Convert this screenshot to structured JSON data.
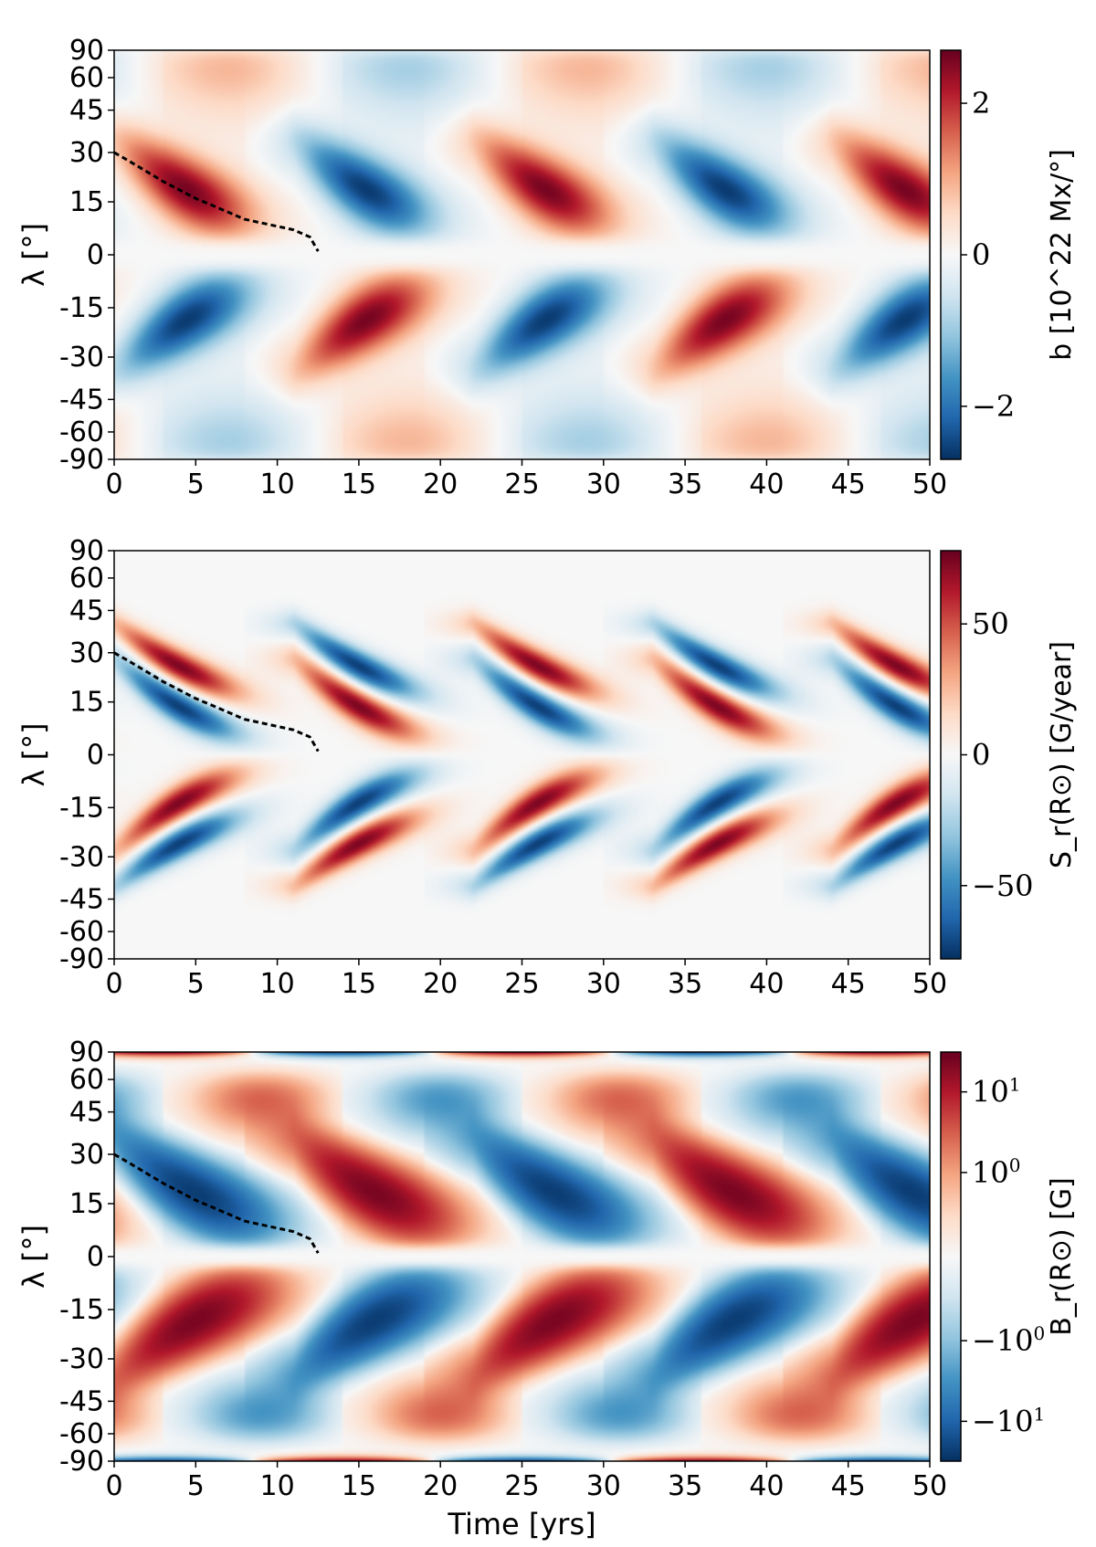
{
  "chart_data": [
    {
      "type": "heatmap",
      "panel": "top",
      "xlabel": "",
      "ylabel": "λ [°]",
      "xlim": [
        0,
        50
      ],
      "x_ticks": [
        "0",
        "5",
        "10",
        "15",
        "20",
        "25",
        "30",
        "35",
        "40",
        "45",
        "50"
      ],
      "y_ticks": [
        "90",
        "60",
        "45",
        "30",
        "15",
        "0",
        "-15",
        "-30",
        "-45",
        "-60",
        "-90"
      ],
      "y_scale": "sine of latitude",
      "colormap": "RdBu_r",
      "colorbar": {
        "label": "b [10^22 Mx/°]",
        "ticks": [
          "2",
          "0",
          "−2"
        ],
        "range": [
          -2.7,
          2.7
        ]
      },
      "pattern": {
        "cycle_period_yrs": 22,
        "band_start_latitude_deg": 30,
        "sign_at_t0_north": 1,
        "peak_value": 2.6
      },
      "overlay_curve": {
        "style": "black dashed",
        "points": [
          [
            0,
            30
          ],
          [
            1,
            27
          ],
          [
            2,
            24
          ],
          [
            3,
            21
          ],
          [
            4,
            18.5
          ],
          [
            5,
            16
          ],
          [
            6,
            14
          ],
          [
            7,
            12
          ],
          [
            8,
            10
          ],
          [
            9,
            9
          ],
          [
            10,
            8
          ],
          [
            11,
            7
          ],
          [
            12,
            5
          ],
          [
            12.5,
            1
          ]
        ]
      }
    },
    {
      "type": "heatmap",
      "panel": "middle",
      "xlabel": "",
      "ylabel": "λ [°]",
      "xlim": [
        0,
        50
      ],
      "x_ticks": [
        "0",
        "5",
        "10",
        "15",
        "20",
        "25",
        "30",
        "35",
        "40",
        "45",
        "50"
      ],
      "y_ticks": [
        "90",
        "60",
        "45",
        "30",
        "15",
        "0",
        "-15",
        "-30",
        "-45",
        "-60",
        "-90"
      ],
      "y_scale": "sine of latitude",
      "colormap": "RdBu_r",
      "colorbar": {
        "label": "S_r(R⊙) [G/year]",
        "ticks": [
          "50",
          "0",
          "−50"
        ],
        "range": [
          -78,
          78
        ]
      },
      "pattern": {
        "cycle_period_yrs": 22,
        "band_start_latitude_deg": 30,
        "sign_at_t0_north": 1,
        "peak_value": 75
      },
      "overlay_curve": {
        "style": "black dashed",
        "points": [
          [
            0,
            30
          ],
          [
            1,
            27
          ],
          [
            2,
            24
          ],
          [
            3,
            21
          ],
          [
            4,
            18.5
          ],
          [
            5,
            16
          ],
          [
            6,
            14
          ],
          [
            7,
            12
          ],
          [
            8,
            10
          ],
          [
            9,
            9
          ],
          [
            10,
            8
          ],
          [
            11,
            7
          ],
          [
            12,
            5
          ],
          [
            12.5,
            1
          ]
        ]
      }
    },
    {
      "type": "heatmap",
      "panel": "bottom",
      "xlabel": "Time [yrs]",
      "ylabel": "λ [°]",
      "xlim": [
        0,
        50
      ],
      "x_ticks": [
        "0",
        "5",
        "10",
        "15",
        "20",
        "25",
        "30",
        "35",
        "40",
        "45",
        "50"
      ],
      "y_ticks": [
        "90",
        "60",
        "45",
        "30",
        "15",
        "0",
        "-15",
        "-30",
        "-45",
        "-60",
        "-90"
      ],
      "y_scale": "sine of latitude",
      "colormap": "RdBu_r",
      "colorbar": {
        "label": "B_r(R⊙) [G]",
        "ticks": [
          "10^1",
          "10^0",
          "−10^0",
          "−10^1"
        ],
        "scale": "symlog",
        "range": [
          -30,
          30
        ]
      },
      "pattern": {
        "cycle_period_yrs": 22,
        "band_start_latitude_deg": 30,
        "sign_at_t0_north": -1,
        "peak_value": 25,
        "polar_peak_value": 30
      },
      "overlay_curve": {
        "style": "black dashed",
        "points": [
          [
            0,
            30
          ],
          [
            1,
            27
          ],
          [
            2,
            24
          ],
          [
            3,
            21
          ],
          [
            4,
            18.5
          ],
          [
            5,
            16
          ],
          [
            6,
            14
          ],
          [
            7,
            12
          ],
          [
            8,
            10
          ],
          [
            9,
            9
          ],
          [
            10,
            8
          ],
          [
            11,
            7
          ],
          [
            12,
            5
          ],
          [
            12.5,
            1
          ]
        ]
      }
    }
  ]
}
